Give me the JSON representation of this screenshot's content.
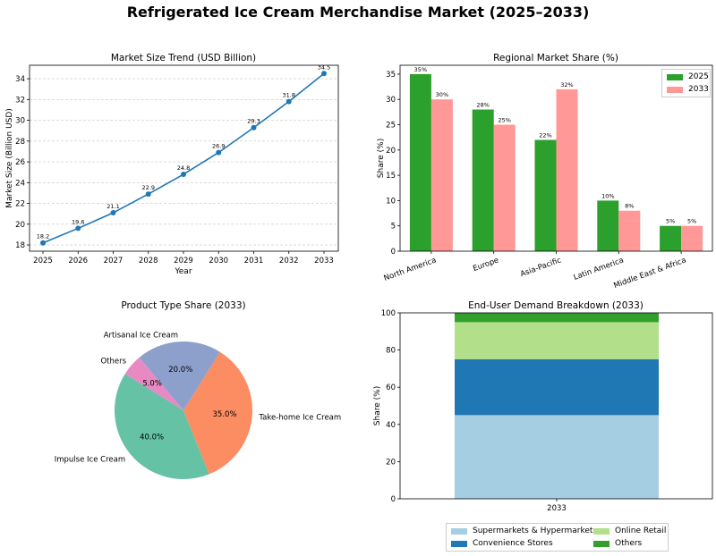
{
  "title": "Refrigerated Ice Cream Merchandise Market (2025–2033)",
  "chart_data": [
    {
      "type": "line",
      "title": "Market Size Trend (USD Billion)",
      "xlabel": "Year",
      "ylabel": "Market Size (Billion USD)",
      "x": [
        "2025",
        "2026",
        "2027",
        "2028",
        "2029",
        "2030",
        "2031",
        "2032",
        "2033"
      ],
      "values": [
        18.2,
        19.6,
        21.1,
        22.9,
        24.8,
        26.9,
        29.3,
        31.8,
        34.5
      ],
      "labels": [
        "18.2",
        "19.6",
        "21.1",
        "22.9",
        "24.8",
        "26.9",
        "29.3",
        "31.8",
        "34.5"
      ],
      "yticks": [
        "18",
        "20",
        "22",
        "24",
        "26",
        "28",
        "30",
        "32",
        "34"
      ],
      "ylim": [
        17.4,
        35.3
      ],
      "grid": "horizontal dashed",
      "color": "#1f77b4"
    },
    {
      "type": "bar",
      "title": "Regional Market Share (%)",
      "ylabel": "Share (%)",
      "categories": [
        "North America",
        "Europe",
        "Asia-Pacific",
        "Latin America",
        "Middle East & Africa"
      ],
      "series": [
        {
          "name": "2025",
          "values": [
            35,
            28,
            22,
            10,
            5
          ],
          "labels": [
            "35%",
            "28%",
            "22%",
            "10%",
            "5%"
          ],
          "color": "#2ca02c"
        },
        {
          "name": "2033",
          "values": [
            30,
            25,
            32,
            8,
            5
          ],
          "labels": [
            "30%",
            "25%",
            "32%",
            "8%",
            "5%"
          ],
          "color": "#ff9896"
        }
      ],
      "yticks": [
        "0",
        "5",
        "10",
        "15",
        "20",
        "25",
        "30",
        "35"
      ],
      "ylim": [
        0,
        36.75
      ],
      "legend": "top-right"
    },
    {
      "type": "pie",
      "title": "Product Type Share (2033)",
      "slices": [
        {
          "label": "Impulse Ice Cream",
          "value": 40.0,
          "pct": "40.0%",
          "color": "#66c2a5"
        },
        {
          "label": "Take-home Ice Cream",
          "value": 35.0,
          "pct": "35.0%",
          "color": "#fc8d62"
        },
        {
          "label": "Artisanal Ice Cream",
          "value": 20.0,
          "pct": "20.0%",
          "color": "#8da0cb"
        },
        {
          "label": "Others",
          "value": 5.0,
          "pct": "5.0%",
          "color": "#e78ac3"
        }
      ]
    },
    {
      "type": "bar",
      "stacked": true,
      "title": "End-User Demand Breakdown (2033)",
      "ylabel": "Share (%)",
      "categories": [
        "2033"
      ],
      "series": [
        {
          "name": "Supermarkets & Hypermarkets",
          "values": [
            45
          ],
          "color": "#a6cee3"
        },
        {
          "name": "Convenience Stores",
          "values": [
            30
          ],
          "color": "#1f78b4"
        },
        {
          "name": "Online Retail",
          "values": [
            20
          ],
          "color": "#b2df8a"
        },
        {
          "name": "Others",
          "values": [
            5
          ],
          "color": "#33a02c"
        }
      ],
      "yticks": [
        "0",
        "20",
        "40",
        "60",
        "80",
        "100"
      ],
      "ylim": [
        0,
        100
      ],
      "legend": "bottom"
    }
  ]
}
